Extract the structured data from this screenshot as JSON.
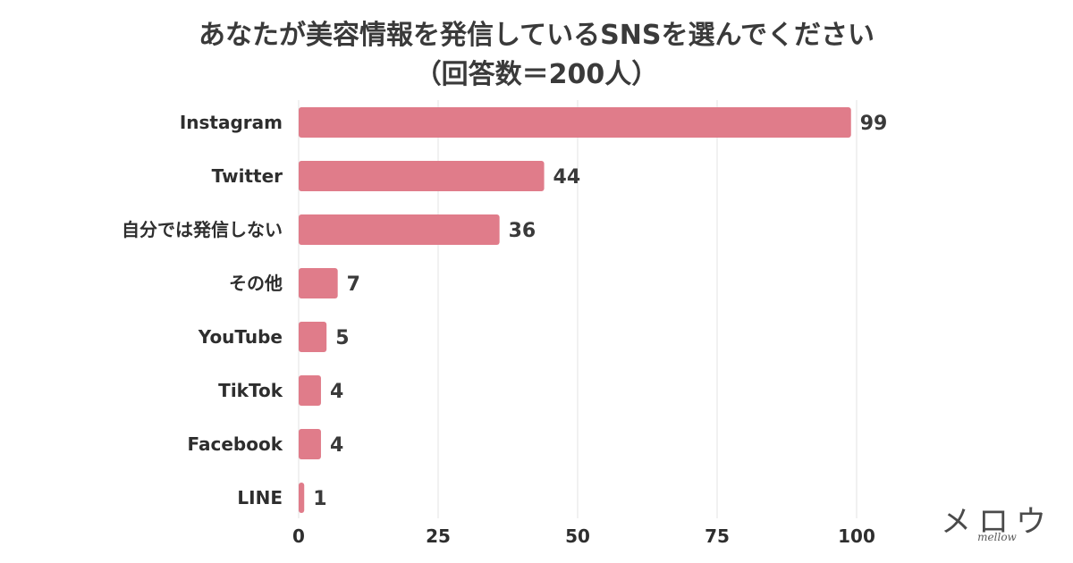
{
  "title": {
    "line1": "あなたが美容情報を発信しているSNSを選んでください",
    "line2": "（回答数＝200人）"
  },
  "chart_data": {
    "type": "bar",
    "orientation": "horizontal",
    "title": "あなたが美容情報を発信しているSNSを選んでください（回答数＝200人）",
    "categories": [
      "Instagram",
      "Twitter",
      "自分では発信しない",
      "その他",
      "YouTube",
      "TikTok",
      "Facebook",
      "LINE"
    ],
    "values": [
      99,
      44,
      36,
      7,
      5,
      4,
      4,
      1
    ],
    "xlim": [
      0,
      100
    ],
    "xticks": [
      0,
      25,
      50,
      75,
      100
    ],
    "grid": true,
    "bar_color": "#e07c8a",
    "grid_color": "#e3e3e3"
  },
  "logo": {
    "main": "メロウ",
    "sub": "mellow"
  }
}
